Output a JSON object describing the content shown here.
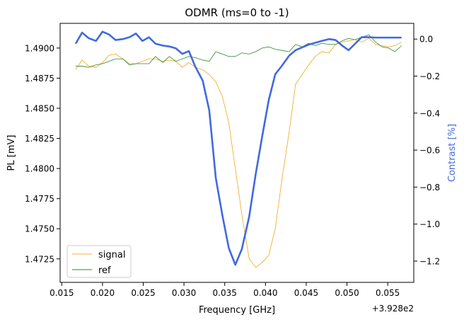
{
  "chart_data": {
    "type": "line",
    "title": "ODMR (ms=0 to -1)",
    "xlabel": "Frequency [GHz]",
    "ylabel_left": "PL [mV]",
    "ylabel_right": "Contrast [%]",
    "x_offset_label": "+3.928e2",
    "x_ticks": [
      0.015,
      0.02,
      0.025,
      0.03,
      0.035,
      0.04,
      0.045,
      0.05,
      0.055
    ],
    "x_tick_labels": [
      "0.015",
      "0.020",
      "0.025",
      "0.030",
      "0.035",
      "0.040",
      "0.045",
      "0.050",
      "0.055"
    ],
    "y_left_ticks": [
      1.4725,
      1.475,
      1.4775,
      1.48,
      1.4825,
      1.485,
      1.4875,
      1.49
    ],
    "y_left_tick_labels": [
      "1.4725",
      "1.4750",
      "1.4775",
      "1.4800",
      "1.4825",
      "1.4850",
      "1.4875",
      "1.4900"
    ],
    "y_right_ticks": [
      0.0,
      -0.2,
      -0.4,
      -0.6,
      -0.8,
      -1.0,
      -1.2
    ],
    "y_right_tick_labels": [
      "0.0",
      "−0.2",
      "−0.4",
      "−0.6",
      "−0.8",
      "−1.0",
      "−1.2"
    ],
    "xlim": [
      0.0148,
      0.0582
    ],
    "ylim_left": [
      1.47055,
      1.49205
    ],
    "ylim_right": [
      -1.315,
      0.085
    ],
    "grid": false,
    "legend_position": "lower-left",
    "colors": {
      "signal": "#f0b030",
      "ref": "#2a8a2a",
      "contrast": "#4169e1",
      "right_label": "#4169e1"
    },
    "series": [
      {
        "name": "signal",
        "axis": "left",
        "x": [
          0.0167,
          0.0175,
          0.0183,
          0.0192,
          0.02,
          0.0208,
          0.0216,
          0.0225,
          0.0233,
          0.0241,
          0.0249,
          0.0257,
          0.0265,
          0.0274,
          0.0282,
          0.029,
          0.0298,
          0.0306,
          0.0314,
          0.0323,
          0.0331,
          0.0339,
          0.0347,
          0.0355,
          0.0363,
          0.0371,
          0.038,
          0.0388,
          0.0396,
          0.0404,
          0.0412,
          0.042,
          0.0429,
          0.0437,
          0.0445,
          0.0453,
          0.0461,
          0.0469,
          0.0478,
          0.0486,
          0.0494,
          0.0502,
          0.051,
          0.0518,
          0.0527,
          0.0535,
          0.0543,
          0.0551,
          0.0559,
          0.0567
        ],
        "y": [
          1.4882,
          1.489,
          1.4885,
          1.4884,
          1.4888,
          1.4894,
          1.4895,
          1.4891,
          1.4887,
          1.4887,
          1.4889,
          1.4891,
          1.4891,
          1.4889,
          1.489,
          1.4889,
          1.4884,
          1.4888,
          1.4884,
          1.4882,
          1.4878,
          1.4872,
          1.486,
          1.4838,
          1.48,
          1.4762,
          1.4725,
          1.4718,
          1.4722,
          1.4728,
          1.475,
          1.479,
          1.483,
          1.487,
          1.4878,
          1.4886,
          1.4893,
          1.4897,
          1.4896,
          1.4903,
          1.4905,
          1.4906,
          1.4907,
          1.4905,
          1.4908,
          1.4903,
          1.4902,
          1.4901,
          1.4902,
          1.4905
        ]
      },
      {
        "name": "ref",
        "axis": "left",
        "x": [
          0.0167,
          0.0175,
          0.0183,
          0.0192,
          0.02,
          0.0208,
          0.0216,
          0.0225,
          0.0233,
          0.0241,
          0.0249,
          0.0257,
          0.0265,
          0.0274,
          0.0282,
          0.029,
          0.0298,
          0.0306,
          0.0314,
          0.0323,
          0.0331,
          0.0339,
          0.0347,
          0.0355,
          0.0363,
          0.0371,
          0.038,
          0.0388,
          0.0396,
          0.0404,
          0.0412,
          0.042,
          0.0429,
          0.0437,
          0.0445,
          0.0453,
          0.0461,
          0.0469,
          0.0478,
          0.0486,
          0.0494,
          0.0502,
          0.051,
          0.0518,
          0.0527,
          0.0535,
          0.0543,
          0.0551,
          0.0559,
          0.0567
        ],
        "y": [
          1.4885,
          1.4885,
          1.4884,
          1.4886,
          1.4887,
          1.4889,
          1.4891,
          1.4891,
          1.4886,
          1.4887,
          1.4887,
          1.4887,
          1.4893,
          1.4888,
          1.4893,
          1.4889,
          1.4891,
          1.4893,
          1.4892,
          1.489,
          1.4889,
          1.4897,
          1.4895,
          1.4893,
          1.4893,
          1.4896,
          1.4895,
          1.4897,
          1.49,
          1.4901,
          1.4899,
          1.4898,
          1.4897,
          1.4903,
          1.4901,
          1.4904,
          1.4902,
          1.4904,
          1.4903,
          1.4903,
          1.4906,
          1.4908,
          1.4907,
          1.4909,
          1.4911,
          1.4905,
          1.4901,
          1.49,
          1.4897,
          1.4902
        ]
      },
      {
        "name": "contrast",
        "axis": "right",
        "x": [
          0.0167,
          0.0175,
          0.0183,
          0.0192,
          0.02,
          0.0208,
          0.0216,
          0.0225,
          0.0233,
          0.0241,
          0.0249,
          0.0257,
          0.0265,
          0.0274,
          0.0282,
          0.029,
          0.0298,
          0.0306,
          0.0314,
          0.0323,
          0.0331,
          0.0339,
          0.0347,
          0.0355,
          0.0363,
          0.0371,
          0.038,
          0.0388,
          0.0396,
          0.0404,
          0.0412,
          0.042,
          0.0429,
          0.0437,
          0.0445,
          0.0453,
          0.0461,
          0.0469,
          0.0478,
          0.0486,
          0.0494,
          0.0502,
          0.051,
          0.0518,
          0.0527,
          0.0535,
          0.0543,
          0.0551,
          0.0559,
          0.0567
        ],
        "y": [
          -0.025,
          0.035,
          0.005,
          -0.01,
          0.04,
          0.025,
          -0.005,
          0.0,
          0.01,
          0.03,
          -0.01,
          0.01,
          -0.025,
          -0.035,
          -0.04,
          -0.05,
          -0.08,
          -0.065,
          -0.15,
          -0.225,
          -0.385,
          -0.75,
          -0.95,
          -1.13,
          -1.22,
          -1.135,
          -0.96,
          -0.73,
          -0.525,
          -0.33,
          -0.19,
          -0.145,
          -0.09,
          -0.06,
          -0.045,
          -0.03,
          -0.02,
          -0.01,
          0.0,
          -0.005,
          -0.035,
          -0.06,
          -0.025,
          0.01,
          0.01,
          0.008,
          0.008,
          0.008,
          0.008,
          0.008
        ]
      }
    ]
  }
}
